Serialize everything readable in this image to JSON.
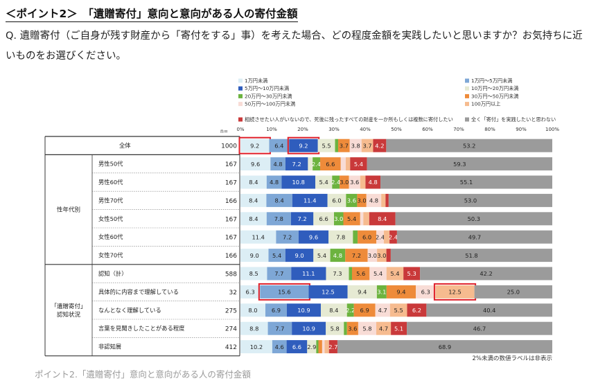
{
  "header": {
    "title": "＜ポイント2＞　「遺贈寄付」意向と意向がある人の寄付金額",
    "question": "Q. 遺贈寄付（ご自身が残す財産から「寄付をする」事）を考えた場合、どの程度金額を実践したいと思いますか？お気持ちに近いものをお選びください。"
  },
  "footer": {
    "caption": "ポイント2.「遺贈寄付」意向と意向がある人の寄付金額"
  },
  "chart_data": {
    "type": "bar",
    "orientation": "horizontal-stacked-100",
    "xlim": [
      0,
      100
    ],
    "xticks": [
      "0%",
      "10%",
      "20%",
      "30%",
      "40%",
      "50%",
      "60%",
      "70%",
      "80%",
      "90%",
      "100%"
    ],
    "n_label": "n=",
    "note": "2%未満の数値ラベルは非表示",
    "legend_placement": "top",
    "series": [
      {
        "name": "1万円未満",
        "color": "#dceef5"
      },
      {
        "name": "1万円～5万円未満",
        "color": "#7ea7d6"
      },
      {
        "name": "5万円～10万円未満",
        "color": "#2f5dbd"
      },
      {
        "name": "10万円～20万円未満",
        "color": "#e6ead3"
      },
      {
        "name": "20万円～30万円未満",
        "color": "#6cb33f"
      },
      {
        "name": "30万円～50万円未満",
        "color": "#ee8b3a"
      },
      {
        "name": "50万円～100万円未満",
        "color": "#f8dcd6"
      },
      {
        "name": "100万円以上",
        "color": "#f6bb8f"
      },
      {
        "name": "相続させたい人がいないので、死後に残ったすべての財産を一か所もしくは複数に寄付したい",
        "color": "#c9393a"
      },
      {
        "name": "全く「寄付」を実践したいと思わない",
        "color": "#9b9b9b"
      }
    ],
    "groups": [
      {
        "label": "",
        "row_count": 1
      },
      {
        "label": "性年代別",
        "row_count": 6
      },
      {
        "label": "「遺贈寄付」\n認知状況",
        "row_count": 5
      }
    ],
    "rows": [
      {
        "label": "全体",
        "n": "1000",
        "values": [
          9.2,
          6.4,
          9.2,
          5.5,
          1.0,
          3.7,
          3.8,
          3.7,
          4.2,
          53.2
        ]
      },
      {
        "label": "男性50代",
        "n": "167",
        "values": [
          9.6,
          4.8,
          7.2,
          1.5,
          2.4,
          6.6,
          1.6,
          1.4,
          5.4,
          59.3
        ]
      },
      {
        "label": "男性60代",
        "n": "167",
        "values": [
          8.4,
          4.8,
          10.8,
          5.4,
          2.4,
          3.0,
          3.6,
          1.7,
          4.8,
          55.1
        ]
      },
      {
        "label": "男性70代",
        "n": "166",
        "values": [
          8.4,
          8.4,
          11.4,
          6.0,
          3.6,
          3.0,
          4.8,
          1.4,
          1.0,
          53.0
        ]
      },
      {
        "label": "女性50代",
        "n": "167",
        "values": [
          8.4,
          7.8,
          7.2,
          6.6,
          3.0,
          5.4,
          1.0,
          1.9,
          8.4,
          50.3
        ]
      },
      {
        "label": "女性60代",
        "n": "167",
        "values": [
          11.4,
          7.2,
          9.6,
          7.8,
          1.5,
          6.0,
          2.4,
          1.8,
          2.4,
          49.7
        ]
      },
      {
        "label": "女性70代",
        "n": "166",
        "values": [
          9.0,
          5.4,
          9.0,
          5.4,
          4.8,
          7.2,
          3.0,
          3.0,
          1.4,
          51.8
        ]
      },
      {
        "label": "認知（計）",
        "n": "588",
        "values": [
          8.5,
          7.7,
          11.1,
          7.3,
          1.0,
          5.6,
          5.4,
          5.4,
          5.3,
          42.2
        ]
      },
      {
        "label": "具体的に内容まで理解している",
        "n": "32",
        "values": [
          6.3,
          15.6,
          12.5,
          9.4,
          3.1,
          9.4,
          6.3,
          12.5,
          0.0,
          25.0
        ]
      },
      {
        "label": "なんとなく理解している",
        "n": "275",
        "values": [
          8.0,
          6.9,
          10.9,
          8.4,
          2.2,
          6.9,
          4.7,
          5.5,
          6.2,
          40.4
        ]
      },
      {
        "label": "言葉を見聞きしたことがある程度",
        "n": "274",
        "values": [
          8.8,
          7.7,
          10.9,
          5.8,
          1.0,
          3.6,
          5.8,
          4.7,
          5.1,
          46.7
        ]
      },
      {
        "label": "非認知層",
        "n": "412",
        "values": [
          10.2,
          4.6,
          6.6,
          2.9,
          0.7,
          1.2,
          0.8,
          1.4,
          2.7,
          68.9
        ]
      }
    ],
    "data_labels": [
      [
        "9.2",
        "6.4",
        "9.2",
        "5.5",
        "",
        "3.7",
        "3.8",
        "3.7",
        "4.2",
        "53.2"
      ],
      [
        "9.6",
        "4.8",
        "7.2",
        "",
        "2.4",
        "6.6",
        "",
        "",
        "5.4",
        "59.3"
      ],
      [
        "8.4",
        "4.8",
        "10.8",
        "5.4",
        "2.4",
        "3.0",
        "3.6",
        "",
        "4.8",
        "55.1"
      ],
      [
        "8.4",
        "8.4",
        "11.4",
        "6.0",
        "3.6",
        "3.0",
        "4.8",
        "",
        "",
        "53.0"
      ],
      [
        "8.4",
        "7.8",
        "7.2",
        "6.6",
        "3.0",
        "5.4",
        "",
        "",
        "8.4",
        "50.3"
      ],
      [
        "11.4",
        "7.2",
        "9.6",
        "7.8",
        "",
        "6.0",
        "2.4",
        "",
        "2.4",
        "49.7"
      ],
      [
        "9.0",
        "5.4",
        "9.0",
        "5.4",
        "4.8",
        "7.2",
        "3.0",
        "3.0",
        "",
        "51.8"
      ],
      [
        "8.5",
        "7.7",
        "11.1",
        "7.3",
        "",
        "5.6",
        "5.4",
        "5.4",
        "5.3",
        "42.2"
      ],
      [
        "6.3",
        "15.6",
        "12.5",
        "9.4",
        "3.1",
        "9.4",
        "6.3",
        "12.5",
        "",
        "25.0"
      ],
      [
        "8.0",
        "6.9",
        "10.9",
        "8.4",
        "2.2",
        "6.9",
        "4.7",
        "5.5",
        "6.2",
        "40.4"
      ],
      [
        "8.8",
        "7.7",
        "10.9",
        "5.8",
        "",
        "3.6",
        "5.8",
        "4.7",
        "5.1",
        "46.7"
      ],
      [
        "10.2",
        "4.6",
        "6.6",
        "2.9",
        "",
        "",
        "",
        "",
        "2.7",
        "68.9"
      ]
    ],
    "highlights": [
      {
        "row": 0,
        "segment": 0
      },
      {
        "row": 0,
        "segment": 2
      },
      {
        "row": 8,
        "segment": 1
      },
      {
        "row": 8,
        "segment": 7
      }
    ],
    "highlight_color": "#e0202a"
  }
}
